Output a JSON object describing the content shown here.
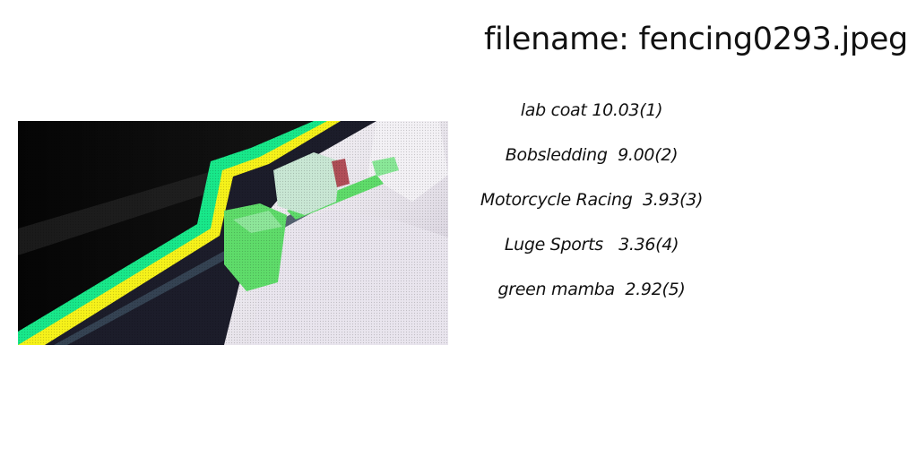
{
  "header": {
    "filename_line": "filename: fencing0293.jpeg"
  },
  "predictions": [
    {
      "label": "lab coat",
      "score": "10.03",
      "rank": "(1)",
      "sep": " "
    },
    {
      "label": "Bobsledding",
      "score": "9.00",
      "rank": "(2)",
      "sep": "  "
    },
    {
      "label": "Motorcycle Racing",
      "score": "3.93",
      "rank": "(3)",
      "sep": "  "
    },
    {
      "label": "Luge Sports",
      "score": "3.36",
      "rank": "(4)",
      "sep": "   "
    },
    {
      "label": "green mamba",
      "score": "2.92",
      "rank": "(5)",
      "sep": "  "
    }
  ],
  "image": {
    "semantic": "fencing-photo",
    "colors": {
      "background": "#0a0a0a",
      "green_outline": "#18e88a",
      "yellow_outline": "#f6f21a",
      "glove_green": "#5fdc6a",
      "jacket": "#f0eef2"
    }
  }
}
